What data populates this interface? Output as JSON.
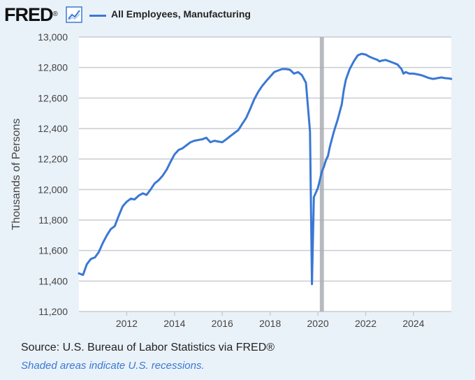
{
  "header": {
    "logo_text": "FRED",
    "logo_symbol": "®",
    "legend_label": "All Employees, Manufacturing"
  },
  "colors": {
    "series": "#3a78d4",
    "recession": "#a9adb3",
    "grid": "#c8ccd1",
    "plot_bg": "#ffffff",
    "page_bg": "#eaf2f9"
  },
  "footer": {
    "source": "Source: U.S. Bureau of Labor Statistics via FRED®",
    "note": "Shaded areas indicate U.S. recessions."
  },
  "chart_data": {
    "type": "line",
    "title": "All Employees, Manufacturing",
    "xlabel": "",
    "ylabel": "Thousands of Persons",
    "xlim": [
      2010.0,
      2025.58
    ],
    "ylim": [
      11200,
      13000
    ],
    "grid": true,
    "y_ticks": [
      11200,
      11400,
      11600,
      11800,
      12000,
      12200,
      12400,
      12600,
      12800,
      13000
    ],
    "y_tick_labels": [
      "11,200",
      "11,400",
      "11,600",
      "11,800",
      "12,000",
      "12,200",
      "12,400",
      "12,600",
      "12,800",
      "13,000"
    ],
    "x_ticks": [
      2012,
      2014,
      2016,
      2018,
      2020,
      2022,
      2024
    ],
    "x_tick_labels": [
      "2012",
      "2014",
      "2016",
      "2018",
      "2020",
      "2022",
      "2024"
    ],
    "recessions": [
      [
        2020.08,
        2020.25
      ]
    ],
    "series": [
      {
        "name": "All Employees, Manufacturing",
        "x": [
          2010.0,
          2010.17,
          2010.33,
          2010.5,
          2010.67,
          2010.83,
          2011.0,
          2011.17,
          2011.33,
          2011.5,
          2011.67,
          2011.83,
          2012.0,
          2012.17,
          2012.33,
          2012.5,
          2012.67,
          2012.83,
          2013.0,
          2013.17,
          2013.33,
          2013.5,
          2013.67,
          2013.83,
          2014.0,
          2014.17,
          2014.33,
          2014.5,
          2014.67,
          2014.83,
          2015.0,
          2015.17,
          2015.33,
          2015.5,
          2015.67,
          2015.83,
          2016.0,
          2016.17,
          2016.33,
          2016.5,
          2016.67,
          2016.83,
          2017.0,
          2017.17,
          2017.33,
          2017.5,
          2017.67,
          2017.83,
          2018.0,
          2018.17,
          2018.33,
          2018.5,
          2018.67,
          2018.83,
          2019.0,
          2019.17,
          2019.33,
          2019.5,
          2019.67,
          2019.75,
          2019.83,
          2020.0,
          2020.08,
          2020.17,
          2020.25,
          2020.33,
          2020.42,
          2020.5,
          2020.67,
          2020.83,
          2021.0,
          2021.08,
          2021.17,
          2021.33,
          2021.5,
          2021.67,
          2021.83,
          2022.0,
          2022.17,
          2022.33,
          2022.5,
          2022.58,
          2022.67,
          2022.83,
          2023.0,
          2023.17,
          2023.33,
          2023.5,
          2023.58,
          2023.67,
          2023.83,
          2024.0,
          2024.17,
          2024.33,
          2024.5,
          2024.58,
          2024.67,
          2024.83,
          2025.0,
          2025.17,
          2025.33,
          2025.5,
          2025.58
        ],
        "values": [
          11450,
          11440,
          11510,
          11545,
          11555,
          11590,
          11650,
          11700,
          11740,
          11760,
          11830,
          11890,
          11920,
          11940,
          11935,
          11960,
          11975,
          11965,
          12000,
          12040,
          12060,
          12090,
          12130,
          12180,
          12230,
          12260,
          12270,
          12290,
          12310,
          12320,
          12325,
          12330,
          12340,
          12310,
          12320,
          12315,
          12310,
          12330,
          12350,
          12370,
          12390,
          12430,
          12470,
          12530,
          12590,
          12640,
          12680,
          12710,
          12740,
          12770,
          12780,
          12790,
          12790,
          12785,
          12760,
          12770,
          12750,
          12700,
          12380,
          11380,
          11950,
          12010,
          12060,
          12120,
          12150,
          12190,
          12220,
          12280,
          12380,
          12460,
          12560,
          12650,
          12720,
          12790,
          12840,
          12880,
          12890,
          12885,
          12870,
          12860,
          12850,
          12840,
          12845,
          12850,
          12840,
          12830,
          12820,
          12790,
          12760,
          12770,
          12760,
          12760,
          12755,
          12750,
          12740,
          12735,
          12730,
          12725,
          12730,
          12735,
          12730,
          12728,
          12725
        ]
      }
    ]
  }
}
